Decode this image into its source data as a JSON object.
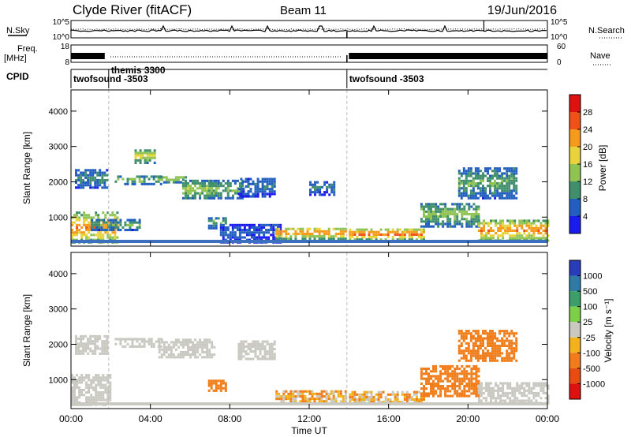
{
  "header": {
    "station": "Clyde River (fitACF)",
    "beam": "Beam 11",
    "date": "19/Jun/2016"
  },
  "noise_panel": {
    "left_label": "N.Sky",
    "right_label": "N.Search",
    "tick_top": "10^5",
    "tick_bottom": "10^0"
  },
  "freq_panel": {
    "left_label_1": "Freq.",
    "left_label_2": "[MHz]",
    "tick_top": "18",
    "tick_bottom": "8",
    "right_label": "Nave",
    "right_tick_top": "60",
    "right_tick_bottom": "0"
  },
  "cpid_panel": {
    "label": "CPID",
    "modes": [
      {
        "name": "twofsound -3503",
        "start_hour": 0
      },
      {
        "name": "themis 3300",
        "start_hour": 1.9
      },
      {
        "name": "twofsound -3503",
        "start_hour": 13.9
      }
    ]
  },
  "power_panel": {
    "ylabel": "Slant Range [km]",
    "colorbar_label": "Power [dB]",
    "colorbar_ticks": [
      "4",
      "8",
      "12",
      "16",
      "20",
      "24",
      "28"
    ],
    "colorbar_colors": [
      "#1b1bf0",
      "#225fbe",
      "#3f8f6c",
      "#8fc455",
      "#e8d43a",
      "#f59b1c",
      "#f0501a",
      "#e01010"
    ]
  },
  "velocity_panel": {
    "ylabel": "Slant Range [km]",
    "colorbar_label": "Velocity [m s⁻¹]",
    "colorbar_ticks": [
      "1000",
      "500",
      "100",
      "25",
      "-25",
      "-100",
      "-500",
      "-1000"
    ],
    "colorbar_colors": [
      "#2a3db8",
      "#2f7aa6",
      "#3e9e6a",
      "#7dcf4a",
      "#c9c9c2",
      "#f1b21c",
      "#f07d1a",
      "#ea4a14",
      "#e01010"
    ]
  },
  "x_axis": {
    "label": "Time UT",
    "ticks": [
      "00:00",
      "04:00",
      "08:00",
      "12:00",
      "16:00",
      "20:00",
      "00:00"
    ]
  },
  "y_axis": {
    "ticks": [
      "1000",
      "2000",
      "3000",
      "4000"
    ]
  },
  "chart_data": {
    "type": "heatmap",
    "x_range_hours": [
      0,
      24
    ],
    "y_range_km": [
      180,
      4600
    ],
    "power_regions": [
      {
        "t0": 0.0,
        "t1": 2.4,
        "r0": 250,
        "r1": 1100,
        "db": 24
      },
      {
        "t0": 0.2,
        "t1": 1.8,
        "r0": 1800,
        "r1": 2300,
        "db": 10
      },
      {
        "t0": 1.0,
        "t1": 3.5,
        "r0": 600,
        "r1": 900,
        "db": 12
      },
      {
        "t0": 2.2,
        "t1": 4.5,
        "r0": 1900,
        "r1": 2150,
        "db": 14
      },
      {
        "t0": 3.2,
        "t1": 4.2,
        "r0": 2500,
        "r1": 2900,
        "db": 18
      },
      {
        "t0": 4.4,
        "t1": 5.8,
        "r0": 1950,
        "r1": 2150,
        "db": 16
      },
      {
        "t0": 5.6,
        "t1": 7.2,
        "r0": 1500,
        "r1": 2000,
        "db": 16
      },
      {
        "t0": 6.9,
        "t1": 8.6,
        "r0": 1500,
        "r1": 2000,
        "db": 14
      },
      {
        "t0": 6.9,
        "t1": 7.8,
        "r0": 650,
        "r1": 1000,
        "db": 12
      },
      {
        "t0": 8.4,
        "t1": 10.2,
        "r0": 1550,
        "r1": 2100,
        "db": 8
      },
      {
        "t0": 7.5,
        "t1": 10.5,
        "r0": 250,
        "r1": 800,
        "db": 6
      },
      {
        "t0": 10.3,
        "t1": 13.8,
        "r0": 350,
        "r1": 700,
        "db": 24
      },
      {
        "t0": 12.0,
        "t1": 13.3,
        "r0": 1600,
        "r1": 2000,
        "db": 8
      },
      {
        "t0": 14.0,
        "t1": 17.8,
        "r0": 330,
        "r1": 650,
        "db": 26
      },
      {
        "t0": 17.6,
        "t1": 20.5,
        "r0": 700,
        "r1": 1400,
        "db": 14
      },
      {
        "t0": 19.5,
        "t1": 22.5,
        "r0": 1500,
        "r1": 2400,
        "db": 12
      },
      {
        "t0": 20.5,
        "t1": 24.0,
        "r0": 300,
        "r1": 900,
        "db": 24
      }
    ],
    "velocity_regions": [
      {
        "t0": 0.0,
        "t1": 2.0,
        "r0": 250,
        "r1": 1100,
        "v": 0
      },
      {
        "t0": 0.2,
        "t1": 1.8,
        "r0": 1700,
        "r1": 2200,
        "v": 0
      },
      {
        "t0": 2.2,
        "t1": 4.6,
        "r0": 1900,
        "r1": 2150,
        "v": 0
      },
      {
        "t0": 4.4,
        "t1": 7.2,
        "r0": 1600,
        "r1": 2100,
        "v": 0
      },
      {
        "t0": 6.9,
        "t1": 7.8,
        "r0": 650,
        "r1": 1000,
        "v": -300
      },
      {
        "t0": 8.4,
        "t1": 10.2,
        "r0": 1550,
        "r1": 2100,
        "v": 0
      },
      {
        "t0": 10.3,
        "t1": 13.8,
        "r0": 350,
        "r1": 700,
        "v": -80
      },
      {
        "t0": 14.0,
        "t1": 17.8,
        "r0": 330,
        "r1": 650,
        "v": -80
      },
      {
        "t0": 17.6,
        "t1": 20.5,
        "r0": 500,
        "r1": 1400,
        "v": -400
      },
      {
        "t0": 19.5,
        "t1": 22.5,
        "r0": 1500,
        "r1": 2400,
        "v": -300
      },
      {
        "t0": 20.5,
        "t1": 24.0,
        "r0": 300,
        "r1": 900,
        "v": 0
      }
    ]
  }
}
